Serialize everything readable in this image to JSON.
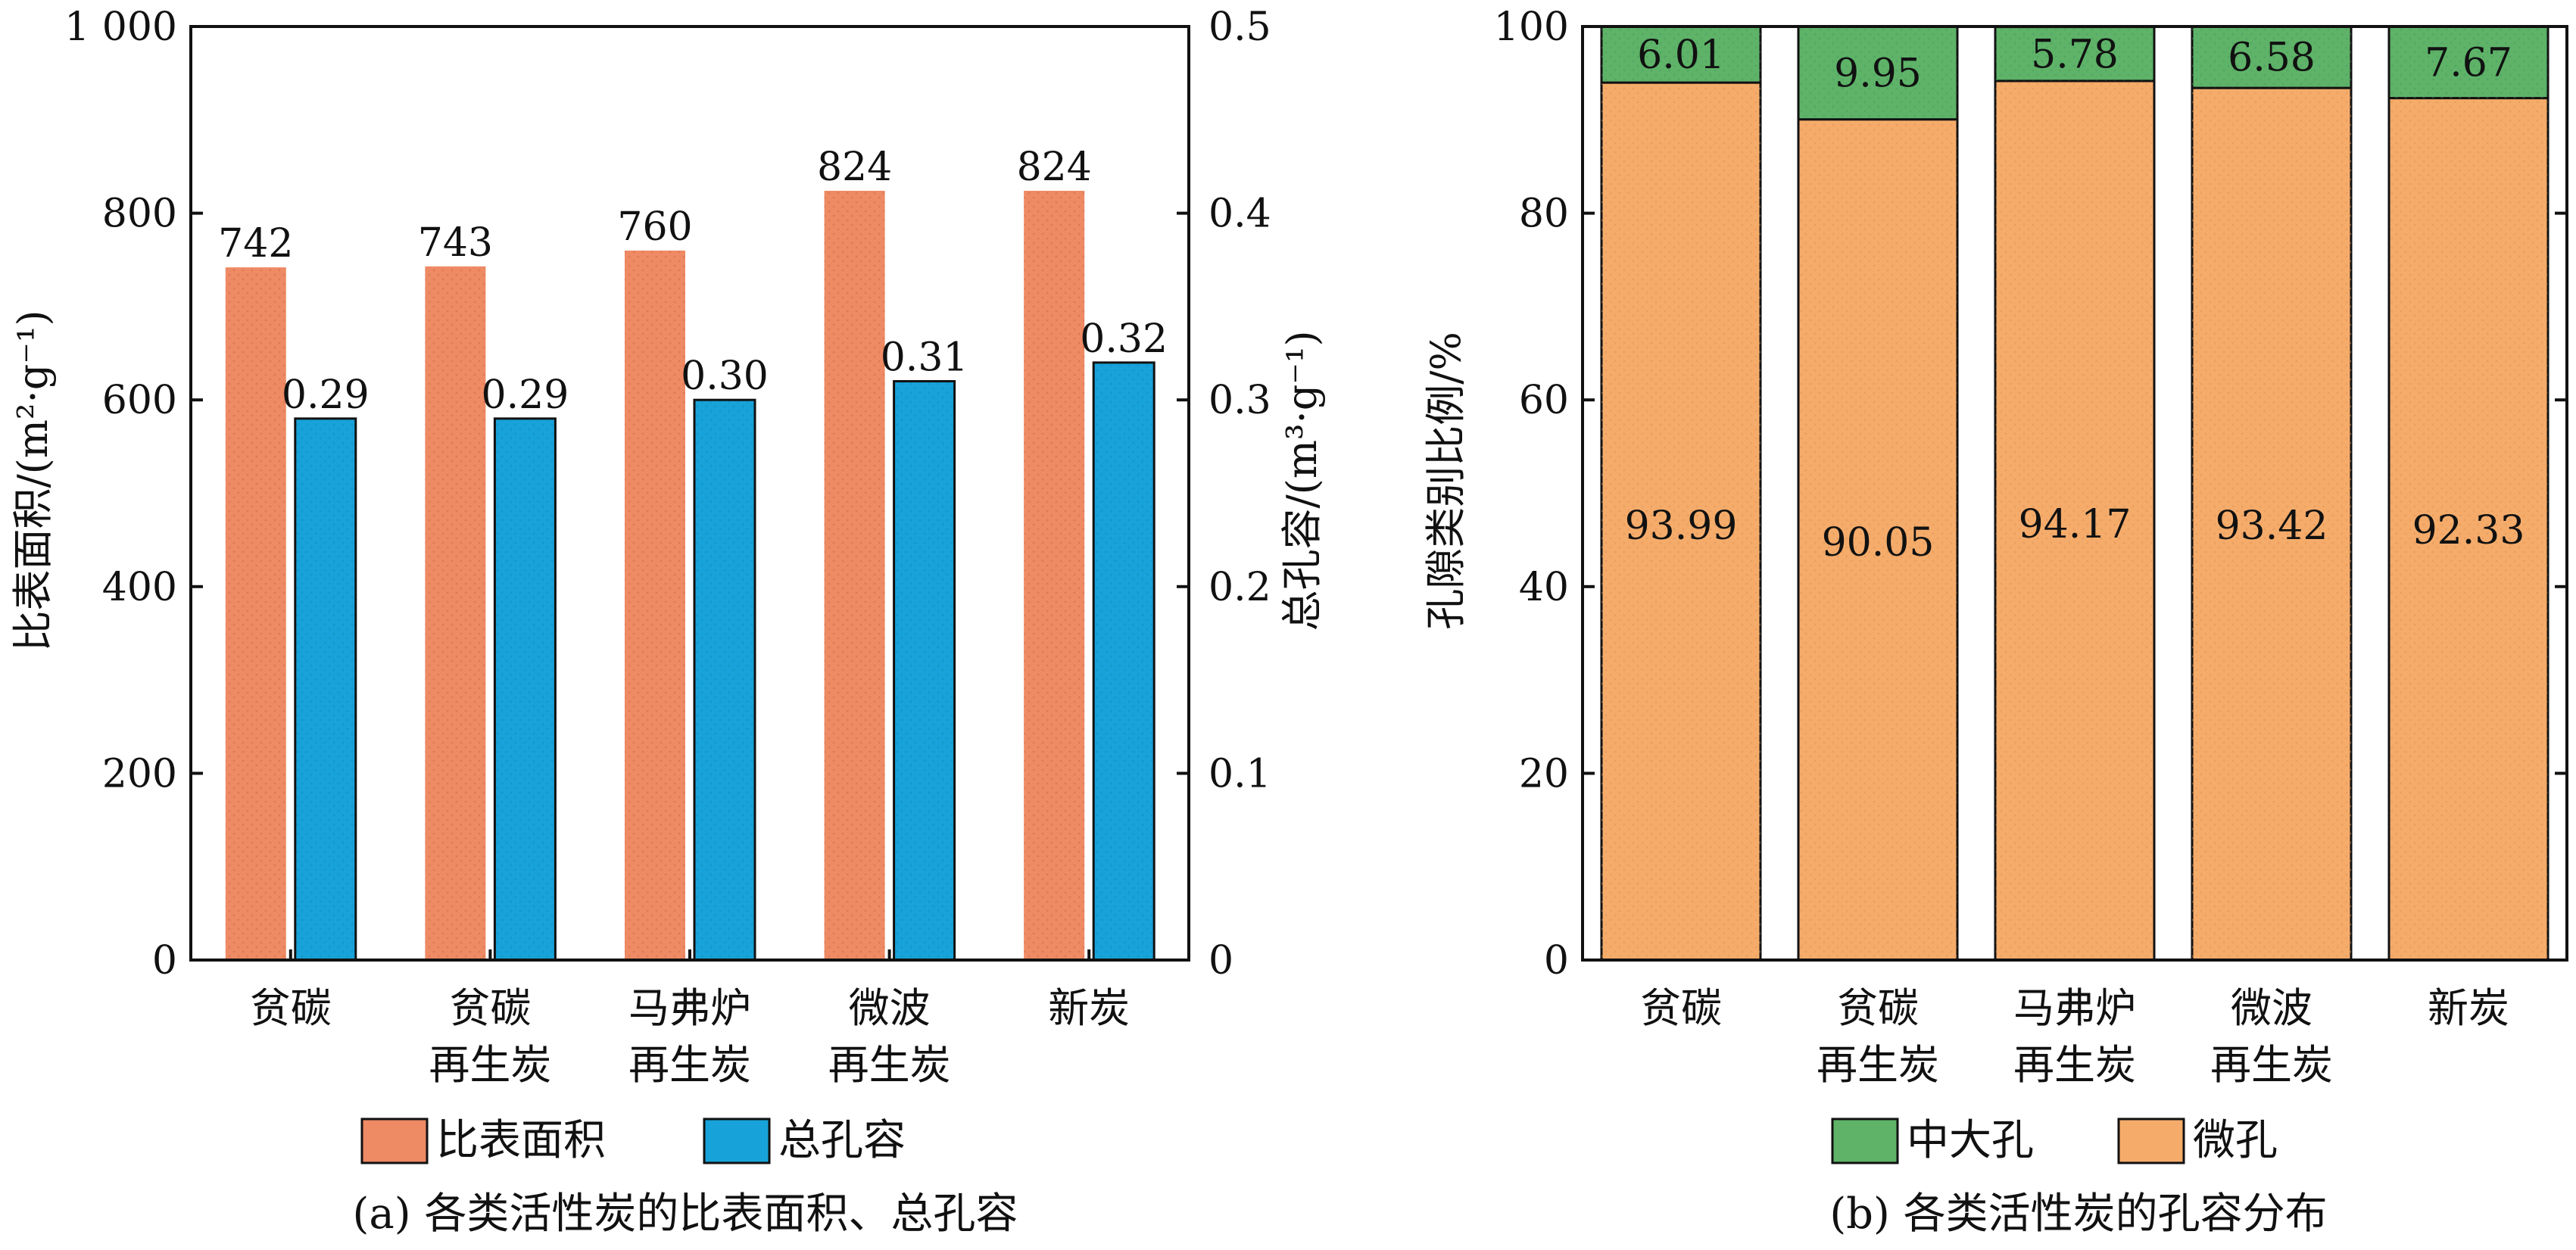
{
  "chart_data": [
    {
      "type": "bar",
      "caption": "(a) 各类活性炭的比表面积、总孔容",
      "categories": [
        [
          "贫碳"
        ],
        [
          "贫碳",
          "再生炭"
        ],
        [
          "马弗炉",
          "再生炭"
        ],
        [
          "微波",
          "再生炭"
        ],
        [
          "新炭"
        ]
      ],
      "ylabel": "比表面积/(m²·g⁻¹)",
      "y2label": "总孔容/(m³·g⁻¹)",
      "ylim": [
        0,
        1000
      ],
      "y2lim": [
        0,
        0.5
      ],
      "yticks": [
        "0",
        "200",
        "400",
        "600",
        "800",
        "1 000"
      ],
      "y2ticks": [
        "0",
        "0.1",
        "0.2",
        "0.3",
        "0.4",
        "0.5"
      ],
      "series": [
        {
          "name": "比表面积",
          "axis": "left",
          "color": "#EE8A64",
          "values": [
            742,
            743,
            760,
            824,
            824
          ],
          "labels": [
            "742",
            "743",
            "760",
            "824",
            "824"
          ]
        },
        {
          "name": "总孔容",
          "axis": "right",
          "color": "#17A3D9",
          "values": [
            0.29,
            0.29,
            0.3,
            0.31,
            0.32
          ],
          "labels": [
            "0.29",
            "0.29",
            "0.30",
            "0.31",
            "0.32"
          ]
        }
      ],
      "legend": "bottom"
    },
    {
      "type": "bar",
      "stacked": true,
      "caption": "(b) 各类活性炭的孔容分布",
      "categories": [
        [
          "贫碳"
        ],
        [
          "贫碳",
          "再生炭"
        ],
        [
          "马弗炉",
          "再生炭"
        ],
        [
          "微波",
          "再生炭"
        ],
        [
          "新炭"
        ]
      ],
      "ylabel": "孔隙类别比例/%",
      "ylim": [
        0,
        100
      ],
      "yticks": [
        "0",
        "20",
        "40",
        "60",
        "80",
        "100"
      ],
      "series": [
        {
          "name": "微孔",
          "color": "#F5AC6B",
          "values": [
            93.99,
            90.05,
            94.17,
            93.42,
            92.33
          ],
          "labels": [
            "93.99",
            "90.05",
            "94.17",
            "93.42",
            "92.33"
          ]
        },
        {
          "name": "中大孔",
          "color": "#5EB369",
          "values": [
            6.01,
            9.95,
            5.78,
            6.58,
            7.67
          ],
          "labels": [
            "6.01",
            "9.95",
            "5.78",
            "6.58",
            "7.67"
          ]
        }
      ],
      "legend_order": [
        "中大孔",
        "微孔"
      ],
      "legend": "bottom"
    }
  ]
}
